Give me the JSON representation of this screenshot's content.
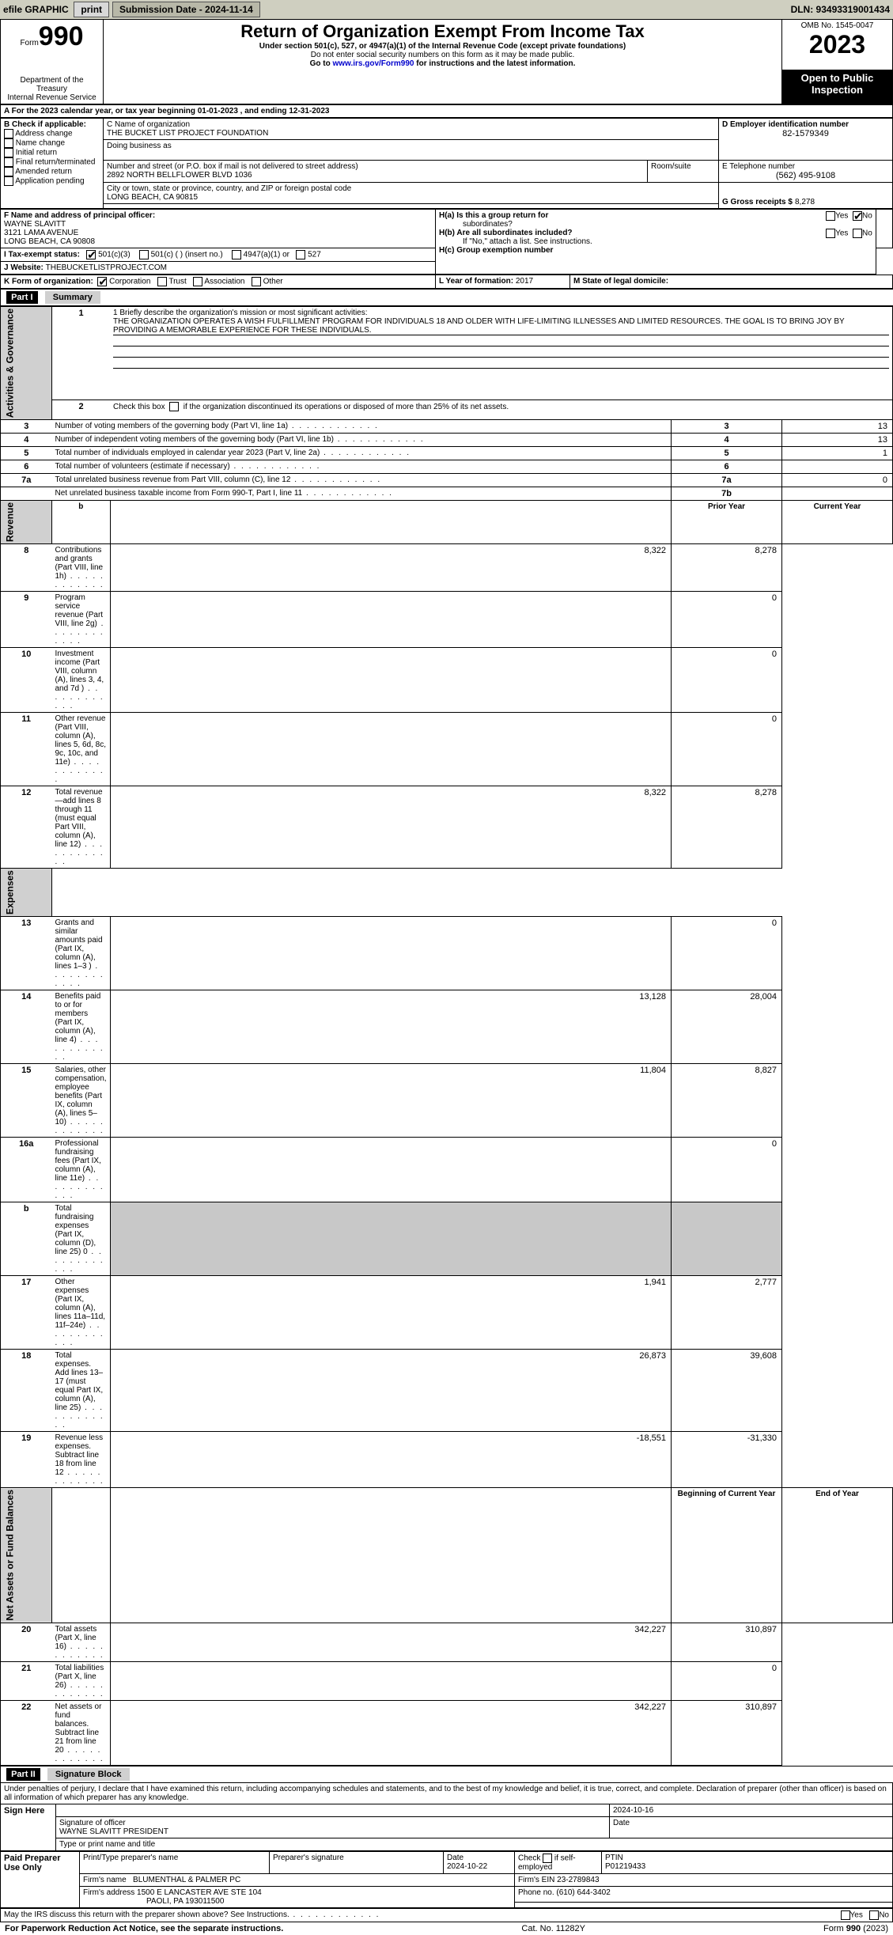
{
  "topbar": {
    "efile_label": "efile GRAPHIC",
    "print_btn": "print",
    "submission_label": "Submission Date - 2024-11-14",
    "dln": "DLN: 93493319001434"
  },
  "header": {
    "form_word": "Form",
    "form_number": "990",
    "dept1": "Department of the Treasury",
    "dept2": "Internal Revenue Service",
    "title": "Return of Organization Exempt From Income Tax",
    "subtitle1": "Under section 501(c), 527, or 4947(a)(1) of the Internal Revenue Code (except private foundations)",
    "subtitle2": "Do not enter social security numbers on this form as it may be made public.",
    "goto_prefix": "Go to ",
    "goto_link": "www.irs.gov/Form990",
    "goto_suffix": " for instructions and the latest information.",
    "omb": "OMB No. 1545-0047",
    "year": "2023",
    "open_public1": "Open to Public",
    "open_public2": "Inspection"
  },
  "period": {
    "a_line": "A For the 2023 calendar year, or tax year beginning 01-01-2023   , and ending 12-31-2023"
  },
  "boxB": {
    "label": "B Check if applicable:",
    "items": [
      "Address change",
      "Name change",
      "Initial return",
      "Final return/terminated",
      "Amended return",
      "Application pending"
    ]
  },
  "boxC": {
    "name_label": "C Name of organization",
    "name": "THE BUCKET LIST PROJECT FOUNDATION",
    "dba_label": "Doing business as",
    "street_label": "Number and street (or P.O. box if mail is not delivered to street address)",
    "street": "2892 NORTH BELLFLOWER BLVD 1036",
    "room_label": "Room/suite",
    "city_label": "City or town, state or province, country, and ZIP or foreign postal code",
    "city": "LONG BEACH, CA  90815"
  },
  "boxD": {
    "label": "D Employer identification number",
    "value": "82-1579349"
  },
  "boxE": {
    "label": "E Telephone number",
    "value": "(562) 495-9108"
  },
  "boxG": {
    "label": "G Gross receipts $",
    "value": "8,278"
  },
  "boxF": {
    "label": "F  Name and address of principal officer:",
    "line1": "WAYNE SLAVITT",
    "line2": "3121 LAMA AVENUE",
    "line3": "LONG BEACH, CA  90808"
  },
  "boxH": {
    "ha_label": "H(a)  Is this a group return for",
    "ha_label2": "subordinates?",
    "hb_label": "H(b)  Are all subordinates included?",
    "hb_note": "If \"No,\" attach a list. See instructions.",
    "hc_label": "H(c)  Group exemption number ",
    "yes": "Yes",
    "no": "No"
  },
  "rowI": {
    "label": "I   Tax-exempt status:",
    "c1": "501(c)(3)",
    "c2": "501(c) (  ) (insert no.)",
    "c3": "4947(a)(1) or",
    "c4": "527"
  },
  "rowJ": {
    "label": "J   Website: ",
    "value": "THEBUCKETLISTPROJECT.COM"
  },
  "rowK": {
    "label": "K Form of organization:",
    "opts": [
      "Corporation",
      "Trust",
      "Association",
      "Other"
    ]
  },
  "rowL": {
    "label": "L Year of formation: ",
    "value": "2017"
  },
  "rowM": {
    "label": "M State of legal domicile:"
  },
  "part1": {
    "header": "Part I",
    "title": "Summary",
    "q1_label": "1  Briefly describe the organization's mission or most significant activities:",
    "q1_text": "THE ORGANIZATION OPERATES A WISH FULFILLMENT PROGRAM FOR INDIVIDUALS 18 AND OLDER WITH LIFE-LIMITING ILLNESSES AND LIMITED RESOURCES. THE GOAL IS TO BRING JOY BY PROVIDING A MEMORABLE EXPERIENCE FOR THESE INDIVIDUALS.",
    "q2": "2   Check this box        if the organization discontinued its operations or disposed of more than 25% of its net assets.",
    "rows_ag": [
      {
        "n": "3",
        "t": "Number of voting members of the governing body (Part VI, line 1a)",
        "box": "3",
        "v": "13"
      },
      {
        "n": "4",
        "t": "Number of independent voting members of the governing body (Part VI, line 1b)",
        "box": "4",
        "v": "13"
      },
      {
        "n": "5",
        "t": "Total number of individuals employed in calendar year 2023 (Part V, line 2a)",
        "box": "5",
        "v": "1"
      },
      {
        "n": "6",
        "t": "Total number of volunteers (estimate if necessary)",
        "box": "6",
        "v": ""
      },
      {
        "n": "7a",
        "t": "Total unrelated business revenue from Part VIII, column (C), line 12",
        "box": "7a",
        "v": "0"
      },
      {
        "n": "",
        "t": "Net unrelated business taxable income from Form 990-T, Part I, line 11",
        "box": "7b",
        "v": ""
      }
    ],
    "col_b": "b",
    "col_prior": "Prior Year",
    "col_current": "Current Year",
    "revenue_rows": [
      {
        "n": "8",
        "t": "Contributions and grants (Part VIII, line 1h)",
        "p": "8,322",
        "c": "8,278"
      },
      {
        "n": "9",
        "t": "Program service revenue (Part VIII, line 2g)",
        "p": "",
        "c": "0"
      },
      {
        "n": "10",
        "t": "Investment income (Part VIII, column (A), lines 3, 4, and 7d )",
        "p": "",
        "c": "0"
      },
      {
        "n": "11",
        "t": "Other revenue (Part VIII, column (A), lines 5, 6d, 8c, 9c, 10c, and 11e)",
        "p": "",
        "c": "0"
      },
      {
        "n": "12",
        "t": "Total revenue—add lines 8 through 11 (must equal Part VIII, column (A), line 12)",
        "p": "8,322",
        "c": "8,278"
      }
    ],
    "expense_rows": [
      {
        "n": "13",
        "t": "Grants and similar amounts paid (Part IX, column (A), lines 1–3 )",
        "p": "",
        "c": "0"
      },
      {
        "n": "14",
        "t": "Benefits paid to or for members (Part IX, column (A), line 4)",
        "p": "13,128",
        "c": "28,004"
      },
      {
        "n": "15",
        "t": "Salaries, other compensation, employee benefits (Part IX, column (A), lines 5–10)",
        "p": "11,804",
        "c": "8,827"
      },
      {
        "n": "16a",
        "t": "Professional fundraising fees (Part IX, column (A), line 11e)",
        "p": "",
        "c": "0"
      },
      {
        "n": "b",
        "t": "Total fundraising expenses (Part IX, column (D), line 25) 0",
        "p": "GREY",
        "c": "GREY"
      },
      {
        "n": "17",
        "t": "Other expenses (Part IX, column (A), lines 11a–11d, 11f–24e)",
        "p": "1,941",
        "c": "2,777"
      },
      {
        "n": "18",
        "t": "Total expenses. Add lines 13–17 (must equal Part IX, column (A), line 25)",
        "p": "26,873",
        "c": "39,608"
      },
      {
        "n": "19",
        "t": "Revenue less expenses. Subtract line 18 from line 12",
        "p": "-18,551",
        "c": "-31,330"
      }
    ],
    "col_begin": "Beginning of Current Year",
    "col_end": "End of Year",
    "na_rows": [
      {
        "n": "20",
        "t": "Total assets (Part X, line 16)",
        "p": "342,227",
        "c": "310,897"
      },
      {
        "n": "21",
        "t": "Total liabilities (Part X, line 26)",
        "p": "",
        "c": "0"
      },
      {
        "n": "22",
        "t": "Net assets or fund balances. Subtract line 21 from line 20",
        "p": "342,227",
        "c": "310,897"
      }
    ],
    "side_ag": "Activities & Governance",
    "side_rev": "Revenue",
    "side_exp": "Expenses",
    "side_na": "Net Assets or Fund Balances"
  },
  "part2": {
    "header": "Part II",
    "title": "Signature Block",
    "declaration": "Under penalties of perjury, I declare that I have examined this return, including accompanying schedules and statements, and to the best of my knowledge and belief, it is true, correct, and complete. Declaration of preparer (other than officer) is based on all information of which preparer has any knowledge.",
    "sign_here": "Sign Here",
    "sig_officer_label": "Signature of officer",
    "sig_officer": "WAYNE SLAVITT PRESIDENT",
    "sig_date": "2024-10-16",
    "date_label": "Date",
    "type_label": "Type or print name and title",
    "paid": "Paid Preparer Use Only",
    "prep_name_label": "Print/Type preparer's name",
    "prep_sig_label": "Preparer's signature",
    "prep_date_label": "Date",
    "prep_date": "2024-10-22",
    "check_self": "Check          if self-employed",
    "ptin_label": "PTIN",
    "ptin": "P01219433",
    "firm_name_label": "Firm's name   ",
    "firm_name": "BLUMENTHAL & PALMER PC",
    "firm_ein_label": "Firm's EIN  ",
    "firm_ein": "23-2789843",
    "firm_addr_label": "Firm's address ",
    "firm_addr1": "1500 E LANCASTER AVE STE 104",
    "firm_addr2": "PAOLI, PA  193011500",
    "phone_label": "Phone no. ",
    "phone": "(610) 644-3402",
    "may_irs": "May the IRS discuss this return with the preparer shown above? See Instructions.",
    "yes": "Yes",
    "no": "No"
  },
  "footer": {
    "left": "For Paperwork Reduction Act Notice, see the separate instructions.",
    "mid": "Cat. No. 11282Y",
    "right": "Form 990 (2023)"
  }
}
